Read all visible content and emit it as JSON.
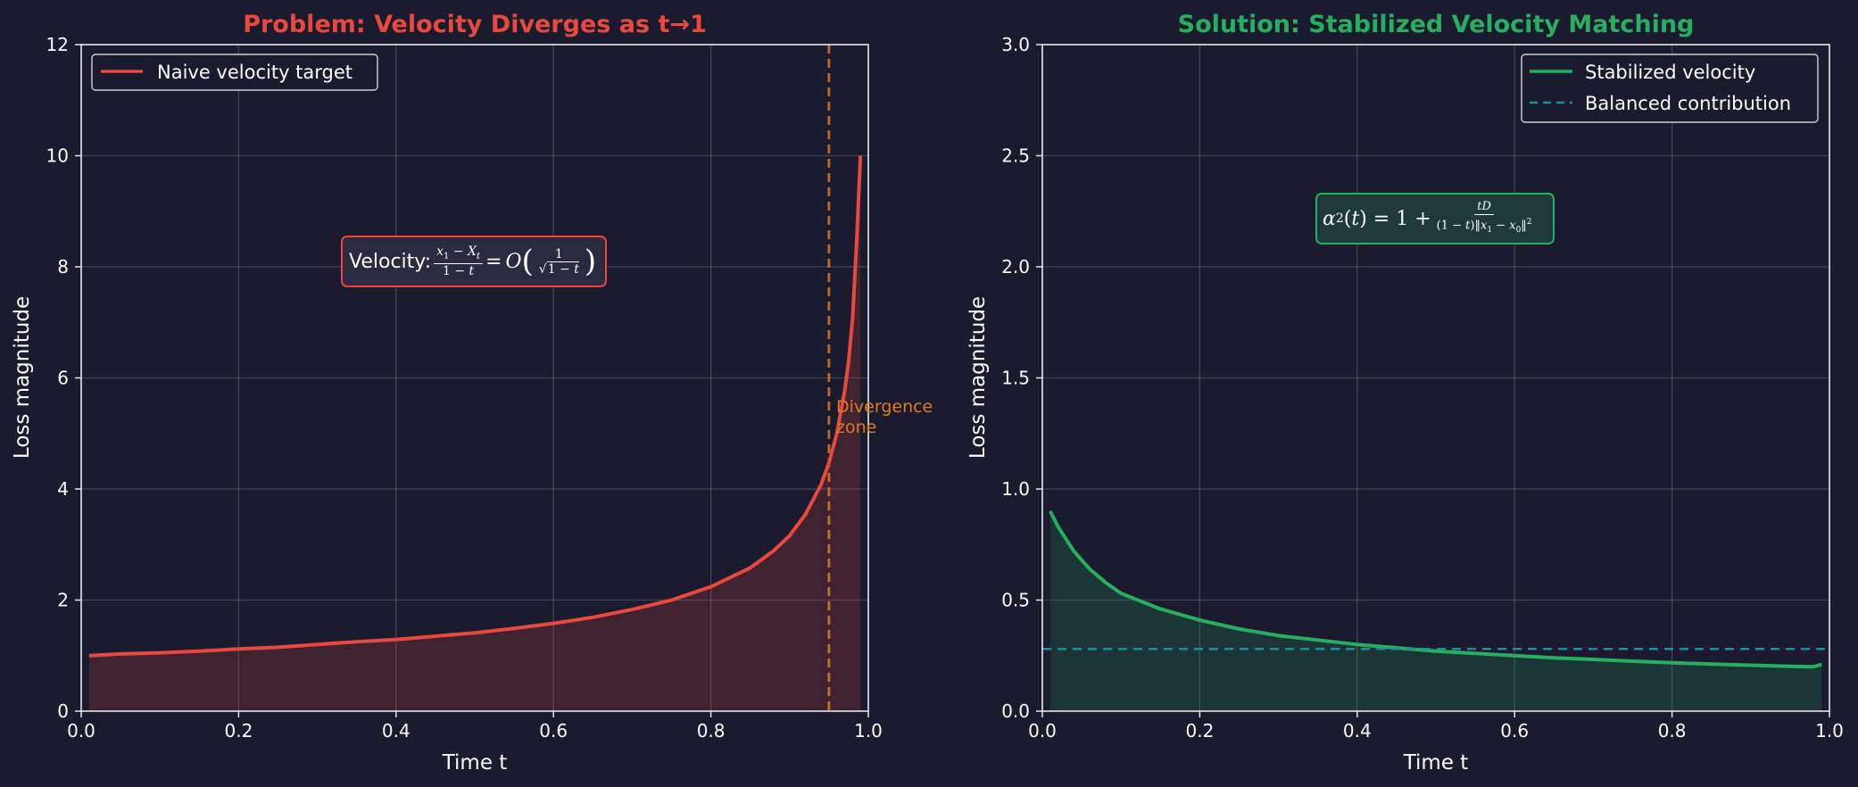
{
  "chart_data": [
    {
      "type": "line",
      "title": "Problem: Velocity Diverges as t→1",
      "title_color": "#e8493f",
      "xlabel": "Time t",
      "ylabel": "Loss magnitude",
      "xlim": [
        0.0,
        1.0
      ],
      "ylim": [
        0,
        12
      ],
      "xticks": [
        "0.0",
        "0.2",
        "0.4",
        "0.6",
        "0.8",
        "1.0"
      ],
      "yticks": [
        "0",
        "2",
        "4",
        "6",
        "8",
        "10",
        "12"
      ],
      "grid": true,
      "legend_position": "top-left",
      "series": [
        {
          "name": "Naive velocity target",
          "color": "#e8493f",
          "filled": true,
          "x": [
            0.01,
            0.05,
            0.1,
            0.15,
            0.2,
            0.25,
            0.3,
            0.35,
            0.4,
            0.45,
            0.5,
            0.55,
            0.6,
            0.65,
            0.7,
            0.75,
            0.8,
            0.85,
            0.88,
            0.9,
            0.92,
            0.94,
            0.95,
            0.96,
            0.97,
            0.975,
            0.98,
            0.985,
            0.99
          ],
          "y": [
            1.0,
            1.03,
            1.05,
            1.08,
            1.12,
            1.15,
            1.2,
            1.25,
            1.29,
            1.35,
            1.41,
            1.49,
            1.58,
            1.69,
            1.83,
            2.0,
            2.24,
            2.58,
            2.89,
            3.16,
            3.54,
            4.08,
            4.47,
            5.0,
            5.77,
            6.3,
            7.07,
            8.4,
            10.0
          ]
        }
      ],
      "vline": {
        "x": 0.95,
        "color": "#e07a22",
        "style": "dashed"
      },
      "annotations": [
        {
          "text": "Divergence\nzone",
          "color": "#e07a22"
        }
      ],
      "formula_box": {
        "label": "Velocity:",
        "border_color": "#e8493f"
      }
    },
    {
      "type": "line",
      "title": "Solution: Stabilized Velocity Matching",
      "title_color": "#27ae60",
      "xlabel": "Time t",
      "ylabel": "Loss magnitude",
      "xlim": [
        0.0,
        1.0
      ],
      "ylim": [
        0.0,
        3.0
      ],
      "xticks": [
        "0.0",
        "0.2",
        "0.4",
        "0.6",
        "0.8",
        "1.0"
      ],
      "yticks": [
        "0.0",
        "0.5",
        "1.0",
        "1.5",
        "2.0",
        "2.5",
        "3.0"
      ],
      "grid": true,
      "legend_position": "top-right",
      "series": [
        {
          "name": "Stabilized velocity",
          "color": "#27ae60",
          "style": "solid",
          "filled": true,
          "x": [
            0.01,
            0.02,
            0.04,
            0.06,
            0.08,
            0.1,
            0.15,
            0.2,
            0.25,
            0.3,
            0.35,
            0.4,
            0.45,
            0.5,
            0.55,
            0.6,
            0.65,
            0.7,
            0.75,
            0.8,
            0.85,
            0.9,
            0.95,
            0.98,
            0.99
          ],
          "y": [
            0.9,
            0.83,
            0.72,
            0.64,
            0.58,
            0.53,
            0.46,
            0.41,
            0.37,
            0.34,
            0.32,
            0.3,
            0.285,
            0.27,
            0.26,
            0.25,
            0.24,
            0.233,
            0.225,
            0.218,
            0.212,
            0.207,
            0.202,
            0.2,
            0.21
          ]
        },
        {
          "name": "Balanced contribution",
          "color": "#1a8fa0",
          "style": "dashed",
          "filled": false,
          "x": [
            0.0,
            1.0
          ],
          "y": [
            0.28,
            0.28
          ]
        }
      ],
      "formula_box": {
        "label": "",
        "border_color": "#27ae60"
      }
    }
  ]
}
